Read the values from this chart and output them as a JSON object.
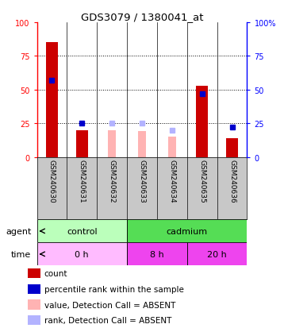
{
  "title": "GDS3079 / 1380041_at",
  "samples": [
    "GSM240630",
    "GSM240631",
    "GSM240632",
    "GSM240633",
    "GSM240634",
    "GSM240635",
    "GSM240636"
  ],
  "count_values": [
    85,
    20,
    0,
    0,
    0,
    53,
    14
  ],
  "percentile_values": [
    57,
    25,
    0,
    0,
    0,
    47,
    22
  ],
  "absent_value_bars": [
    0,
    0,
    20,
    19,
    15,
    0,
    0
  ],
  "absent_rank_bars": [
    0,
    0,
    25,
    25,
    20,
    0,
    0
  ],
  "count_color": "#cc0000",
  "percentile_color": "#0000cc",
  "absent_value_color": "#ffb3b3",
  "absent_rank_color": "#b3b3ff",
  "ylim": [
    0,
    100
  ],
  "dotted_lines": [
    25,
    50,
    75
  ],
  "agent_control_color": "#bbffbb",
  "agent_cadmium_color": "#55dd55",
  "time_0h_color": "#ffbbff",
  "time_8h_color": "#ee44ee",
  "time_20h_color": "#ee44ee",
  "legend_items": [
    {
      "label": "count",
      "color": "#cc0000"
    },
    {
      "label": "percentile rank within the sample",
      "color": "#0000cc"
    },
    {
      "label": "value, Detection Call = ABSENT",
      "color": "#ffb3b3"
    },
    {
      "label": "rank, Detection Call = ABSENT",
      "color": "#b3b3ff"
    }
  ]
}
